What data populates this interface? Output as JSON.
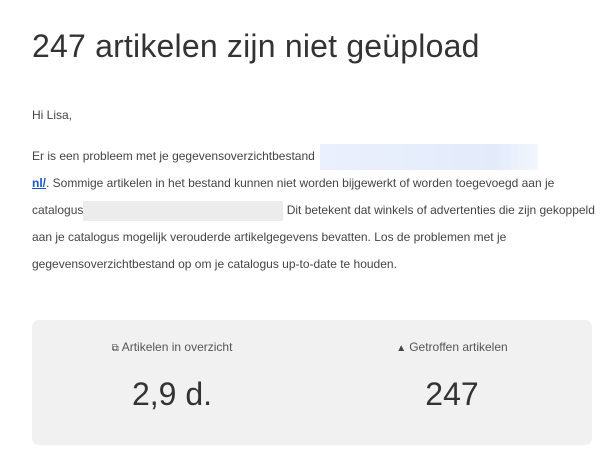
{
  "header": {
    "title": "247 artikelen zijn niet geüpload"
  },
  "greeting": "Hi Lisa,",
  "body": {
    "part1": "Er is een probleem met je gegevensoverzichtbestand ",
    "link_text": "nl/",
    "part2": ". Sommige artikelen in het bestand kunnen niet worden bijgewerkt of worden toegevoegd aan je catalogus",
    "part3": " Dit betekent dat winkels of advertenties die zijn gekoppeld aan je catalogus mogelijk verouderde artikelgegevens bevatten. Los de problemen met je gegevensoverzichtbestand op om je catalogus up-to-date te houden."
  },
  "stats": [
    {
      "icon": "stacked-items-icon",
      "glyph": "⧉",
      "label": "Artikelen in overzicht",
      "value": "2,9 d."
    },
    {
      "icon": "warning-icon",
      "glyph": "▲",
      "label": "Getroffen artikelen",
      "value": "247"
    }
  ],
  "colors": {
    "link": "#1a57c5",
    "panel": "#f1f1f1"
  }
}
